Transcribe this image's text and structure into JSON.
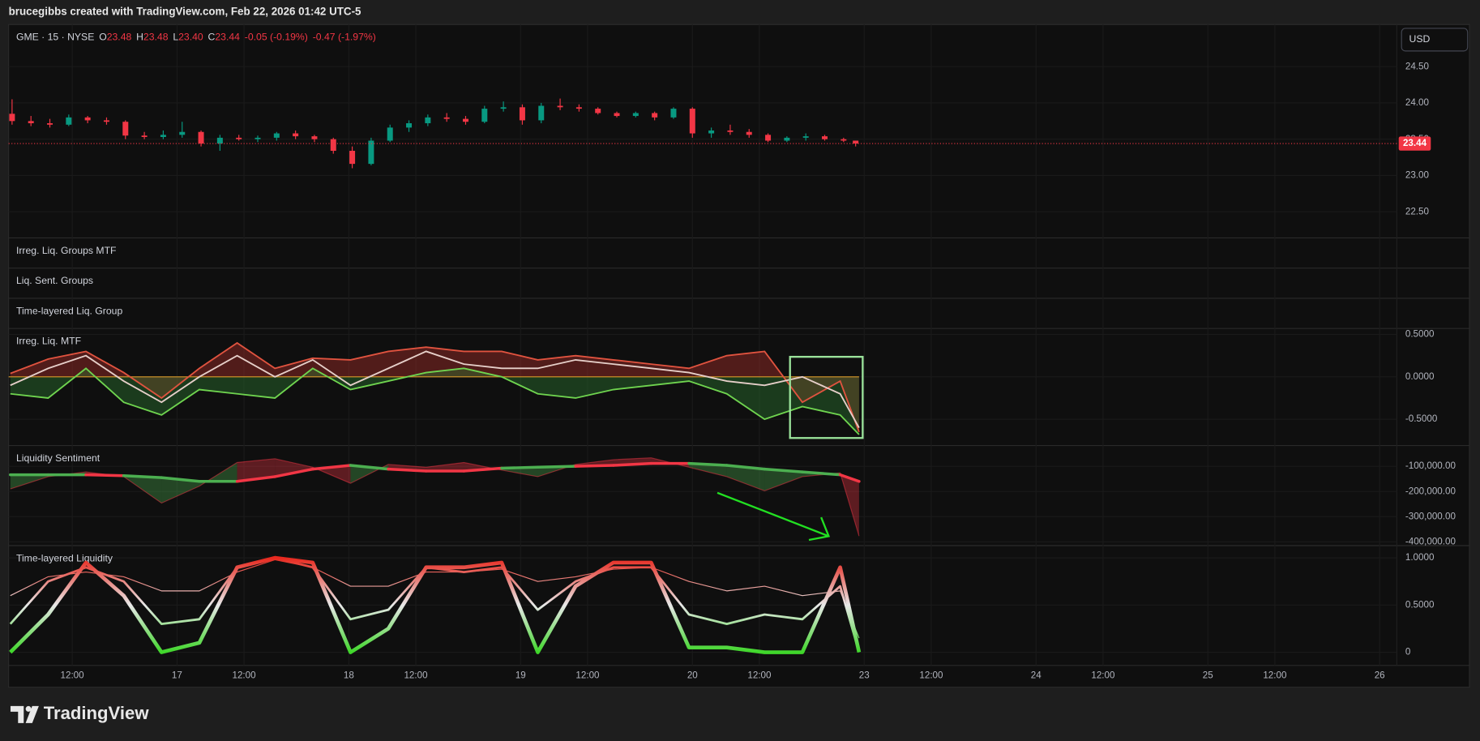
{
  "header": {
    "credit": "brucegibbs created with TradingView.com, Feb 22, 2026 01:42 UTC-5"
  },
  "footer": {
    "brand": "TradingView"
  },
  "currency_button": "USD",
  "chart_data": [
    {
      "type": "candlestick",
      "title": "GME · 15 · NYSE",
      "legend_items": [
        [
          "O",
          "23.48"
        ],
        [
          "H",
          "23.48"
        ],
        [
          "L",
          "23.40"
        ],
        [
          "C",
          "23.44"
        ]
      ],
      "change_labels": [
        "-0.05 (-0.19%)",
        "-0.47 (-1.97%)"
      ],
      "up_color": "#089981",
      "down_color": "#f23645",
      "x": [
        0.04,
        0.15,
        0.26,
        0.37,
        0.48,
        0.59,
        0.7,
        0.81,
        0.92,
        1.03,
        1.14,
        1.25,
        1.36,
        1.47,
        1.58,
        1.69,
        1.8,
        1.91,
        2.02,
        2.13,
        2.24,
        2.35,
        2.46,
        2.57,
        2.68,
        2.79,
        2.9,
        3.01,
        3.12,
        3.23,
        3.34,
        3.45,
        3.56,
        3.67,
        3.78,
        3.89,
        4.0,
        4.11,
        4.22,
        4.33,
        4.44,
        4.55,
        4.66,
        4.77,
        4.88,
        4.95
      ],
      "open": [
        23.85,
        23.75,
        23.72,
        23.7,
        23.8,
        23.76,
        23.74,
        23.55,
        23.53,
        23.56,
        23.6,
        23.44,
        23.52,
        23.5,
        23.52,
        23.58,
        23.54,
        23.5,
        23.34,
        23.16,
        23.48,
        23.66,
        23.72,
        23.8,
        23.78,
        23.74,
        23.92,
        23.94,
        23.76,
        23.96,
        23.94,
        23.92,
        23.86,
        23.82,
        23.86,
        23.8,
        23.92,
        23.58,
        23.62,
        23.6,
        23.56,
        23.48,
        23.52,
        23.54,
        23.5,
        23.48
      ],
      "high": [
        24.05,
        23.82,
        23.78,
        23.84,
        23.82,
        23.8,
        23.76,
        23.6,
        23.62,
        23.74,
        23.62,
        23.56,
        23.56,
        23.55,
        23.6,
        23.62,
        23.56,
        23.52,
        23.4,
        23.52,
        23.7,
        23.76,
        23.84,
        23.86,
        23.82,
        23.96,
        24.02,
        23.98,
        24.0,
        24.06,
        23.98,
        23.94,
        23.88,
        23.88,
        23.88,
        23.94,
        23.94,
        23.66,
        23.7,
        23.64,
        23.58,
        23.54,
        23.58,
        23.56,
        23.52,
        23.48
      ],
      "low": [
        23.7,
        23.68,
        23.66,
        23.68,
        23.72,
        23.7,
        23.5,
        23.5,
        23.5,
        23.52,
        23.4,
        23.34,
        23.48,
        23.46,
        23.48,
        23.5,
        23.46,
        23.3,
        23.1,
        23.14,
        23.46,
        23.6,
        23.68,
        23.74,
        23.7,
        23.72,
        23.88,
        23.7,
        23.72,
        23.9,
        23.88,
        23.84,
        23.8,
        23.8,
        23.76,
        23.78,
        23.52,
        23.52,
        23.56,
        23.52,
        23.46,
        23.46,
        23.48,
        23.48,
        23.46,
        23.4
      ],
      "close": [
        23.75,
        23.72,
        23.7,
        23.8,
        23.76,
        23.74,
        23.55,
        23.53,
        23.56,
        23.6,
        23.44,
        23.52,
        23.5,
        23.52,
        23.58,
        23.54,
        23.5,
        23.34,
        23.16,
        23.48,
        23.66,
        23.72,
        23.8,
        23.78,
        23.74,
        23.92,
        23.94,
        23.76,
        23.96,
        23.94,
        23.92,
        23.86,
        23.82,
        23.86,
        23.8,
        23.92,
        23.58,
        23.62,
        23.6,
        23.56,
        23.48,
        23.52,
        23.54,
        23.5,
        23.48,
        23.44
      ],
      "ylim": [
        22.14,
        25.08
      ],
      "yticks": [
        {
          "value": 22.5,
          "label": "22.50"
        },
        {
          "value": 23,
          "label": "23.00"
        },
        {
          "value": 23.5,
          "label": "23.50"
        },
        {
          "value": 24,
          "label": "24.00"
        },
        {
          "value": 24.5,
          "label": "24.50"
        }
      ],
      "xlim": [
        0.02,
        8.1
      ],
      "xticks": [
        {
          "value": 0.39,
          "label": "12:00"
        },
        {
          "value": 1,
          "label": "17"
        },
        {
          "value": 1.39,
          "label": "12:00"
        },
        {
          "value": 2,
          "label": "18"
        },
        {
          "value": 2.39,
          "label": "12:00"
        },
        {
          "value": 3,
          "label": "19"
        },
        {
          "value": 3.39,
          "label": "12:00"
        },
        {
          "value": 4,
          "label": "20"
        },
        {
          "value": 4.39,
          "label": "12:00"
        },
        {
          "value": 5,
          "label": "23"
        },
        {
          "value": 5.39,
          "label": "12:00"
        },
        {
          "value": 6,
          "label": "24"
        },
        {
          "value": 6.39,
          "label": "12:00"
        },
        {
          "value": 7,
          "label": "25"
        },
        {
          "value": 7.39,
          "label": "12:00"
        },
        {
          "value": 8,
          "label": "26"
        }
      ]
    },
    {
      "type": "pane",
      "title": "Irreg. Liq. Groups MTF"
    },
    {
      "type": "pane",
      "title": "Liq. Sent. Groups"
    },
    {
      "type": "pane",
      "title": "Time-layered Liq. Group"
    },
    {
      "type": "area",
      "title": "Irreg. Liq. MTF",
      "zero_color": "#d89a2a",
      "x": [
        0.03,
        0.25,
        0.47,
        0.69,
        0.91,
        1.13,
        1.35,
        1.57,
        1.79,
        2.01,
        2.23,
        2.45,
        2.67,
        2.89,
        3.1,
        3.32,
        3.54,
        3.76,
        3.98,
        4.2,
        4.42,
        4.64,
        4.86,
        4.97
      ],
      "series": [
        {
          "color": "#e0533f",
          "fill": "#b3302a",
          "values": [
            0.04,
            0.21,
            0.3,
            0.05,
            -0.25,
            0.1,
            0.4,
            0.1,
            0.22,
            0.2,
            0.3,
            0.35,
            0.3,
            0.3,
            0.2,
            0.25,
            0.2,
            0.15,
            0.1,
            0.25,
            0.3,
            -0.3,
            -0.05,
            -0.65
          ]
        },
        {
          "color": "#e6cfc9",
          "values": [
            -0.1,
            0.1,
            0.25,
            -0.05,
            -0.3,
            0.0,
            0.25,
            0.0,
            0.2,
            -0.1,
            0.1,
            0.3,
            0.15,
            0.1,
            0.1,
            0.2,
            0.15,
            0.1,
            0.05,
            -0.05,
            -0.1,
            0.0,
            -0.2,
            -0.6
          ]
        },
        {
          "color": "#6fd44f",
          "fill": "#2e7d32",
          "values": [
            -0.2,
            -0.25,
            0.1,
            -0.3,
            -0.45,
            -0.15,
            -0.2,
            -0.25,
            0.1,
            -0.15,
            -0.05,
            0.05,
            0.1,
            0.0,
            -0.2,
            -0.25,
            -0.15,
            -0.1,
            -0.05,
            -0.2,
            -0.5,
            -0.35,
            -0.45,
            -0.68
          ]
        }
      ],
      "ylim": [
        -0.81,
        0.57
      ],
      "yticks": [
        {
          "value": -0.5,
          "label": "-0.5000"
        },
        {
          "value": 0,
          "label": "0.0000"
        },
        {
          "value": 0.5,
          "label": "0.5000"
        }
      ]
    },
    {
      "type": "band",
      "title": "Liquidity Sentiment",
      "bull_color": "#4caf50",
      "bear_color": "#f23645",
      "x": [
        0.03,
        0.25,
        0.47,
        0.69,
        0.91,
        1.13,
        1.35,
        1.57,
        1.79,
        2.01,
        2.23,
        2.45,
        2.67,
        2.89,
        3.1,
        3.32,
        3.54,
        3.76,
        3.98,
        4.2,
        4.42,
        4.64,
        4.86,
        4.97
      ],
      "series": [
        {
          "values": [
            -133700,
            -133700,
            -133700,
            -137500,
            -145000,
            -160000,
            -160000,
            -141200,
            -111200,
            -96300,
            -111200,
            -118700,
            -118700,
            -107500,
            -103700,
            -100000,
            -96300,
            -88800,
            -88800,
            -96300,
            -111200,
            -122500,
            -133700,
            -160000
          ]
        },
        {
          "values": [
            -189900,
            -141200,
            -122500,
            -141200,
            -246000,
            -178700,
            -85000,
            -70000,
            -103700,
            -167400,
            -92500,
            -103700,
            -85000,
            -115000,
            -141200,
            -92500,
            -73800,
            -66300,
            -103700,
            -141200,
            -197400,
            -141200,
            -126200,
            -377200
          ]
        }
      ],
      "ylim": [
        -415000,
        -17600
      ],
      "yticks": [
        {
          "value": -400000,
          "label": "-400,000.00"
        },
        {
          "value": -300000,
          "label": "-300,000.00"
        },
        {
          "value": -200000,
          "label": "-200,000.00"
        },
        {
          "value": -100000,
          "label": "-100,000.00"
        }
      ]
    },
    {
      "type": "line",
      "title": "Time-layered Liquidity",
      "gradient_colors": [
        "#3fd62a",
        "#e8e8e8",
        "#e8281e"
      ],
      "x": [
        0.03,
        0.25,
        0.47,
        0.69,
        0.91,
        1.13,
        1.35,
        1.57,
        1.79,
        2.01,
        2.23,
        2.45,
        2.67,
        2.89,
        3.1,
        3.32,
        3.54,
        3.76,
        3.98,
        4.2,
        4.42,
        4.64,
        4.86,
        4.97
      ],
      "series": [
        {
          "values": [
            0.0,
            0.4,
            0.95,
            0.6,
            0.0,
            0.1,
            0.9,
            1.0,
            0.95,
            0.0,
            0.25,
            0.9,
            0.9,
            0.95,
            0.0,
            0.7,
            0.95,
            0.95,
            0.05,
            0.05,
            0.0,
            0.0,
            0.9,
            0.0
          ]
        },
        {
          "values": [
            0.3,
            0.75,
            0.9,
            0.75,
            0.3,
            0.35,
            0.9,
            1.0,
            0.9,
            0.35,
            0.45,
            0.9,
            0.85,
            0.9,
            0.45,
            0.75,
            0.9,
            0.9,
            0.4,
            0.3,
            0.4,
            0.35,
            0.7,
            0.0
          ]
        },
        {
          "values": [
            0.6,
            0.8,
            0.85,
            0.8,
            0.65,
            0.65,
            0.85,
            0.98,
            0.9,
            0.7,
            0.7,
            0.85,
            0.85,
            0.88,
            0.75,
            0.8,
            0.88,
            0.9,
            0.75,
            0.65,
            0.7,
            0.6,
            0.65,
            0.15
          ]
        }
      ],
      "ylim": [
        -0.14,
        1.13
      ],
      "yticks": [
        0,
        {
          "value": 0.5,
          "label": "0.5000"
        },
        {
          "value": 1,
          "label": "1.0000"
        }
      ]
    }
  ]
}
